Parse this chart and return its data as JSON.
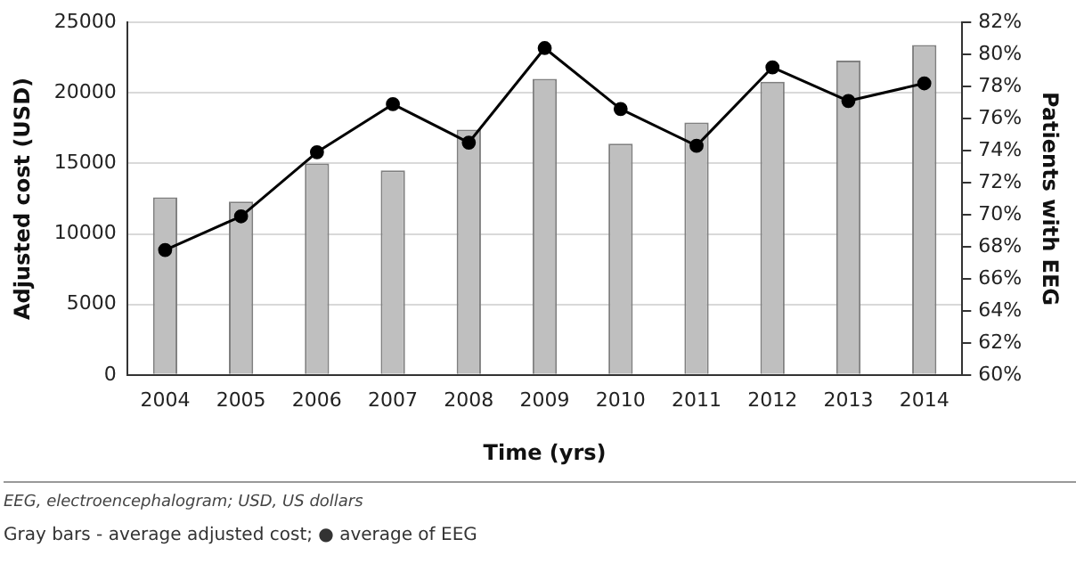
{
  "chart_data": {
    "type": "bar",
    "xlabel": "Time (yrs)",
    "ylabel": "Adjusted cost (USD)",
    "y2label": "Patients with EEG",
    "categories": [
      "2004",
      "2005",
      "2006",
      "2007",
      "2008",
      "2009",
      "2010",
      "2011",
      "2012",
      "2013",
      "2014"
    ],
    "series": [
      {
        "color": "#bfbfbf",
        "values": [
          12600,
          12300,
          15000,
          14500,
          17400,
          21000,
          16400,
          17900,
          20800,
          22300,
          23400
        ]
      },
      {
        "type": "line",
        "axis": "y2",
        "color": "#000000",
        "values": [
          67.8,
          69.9,
          73.9,
          76.9,
          74.5,
          80.4,
          76.6,
          74.3,
          79.2,
          77.1,
          78.2
        ]
      }
    ],
    "ylim": [
      0,
      25000
    ],
    "yticks": [
      0,
      5000,
      10000,
      15000,
      20000,
      25000
    ],
    "y2lim": [
      60,
      82
    ],
    "y2ticks": [
      {
        "value": 60,
        "label": "60%"
      },
      {
        "value": 62,
        "label": "62%"
      },
      {
        "value": 64,
        "label": "64%"
      },
      {
        "value": 66,
        "label": "66%"
      },
      {
        "value": 68,
        "label": "68%"
      },
      {
        "value": 70,
        "label": "70%"
      },
      {
        "value": 72,
        "label": "72%"
      },
      {
        "value": 74,
        "label": "74%"
      },
      {
        "value": 76,
        "label": "76%"
      },
      {
        "value": 78,
        "label": "78%"
      },
      {
        "value": 80,
        "label": "80%"
      },
      {
        "value": 82,
        "label": "82%"
      }
    ],
    "grid": "y",
    "legend": false,
    "marker": "circle",
    "line_style": "solid",
    "annotations": [
      "EEG, electroencephalogram; USD, US dollars",
      "Gray bars - average adjusted cost; ● average of EEG"
    ]
  }
}
